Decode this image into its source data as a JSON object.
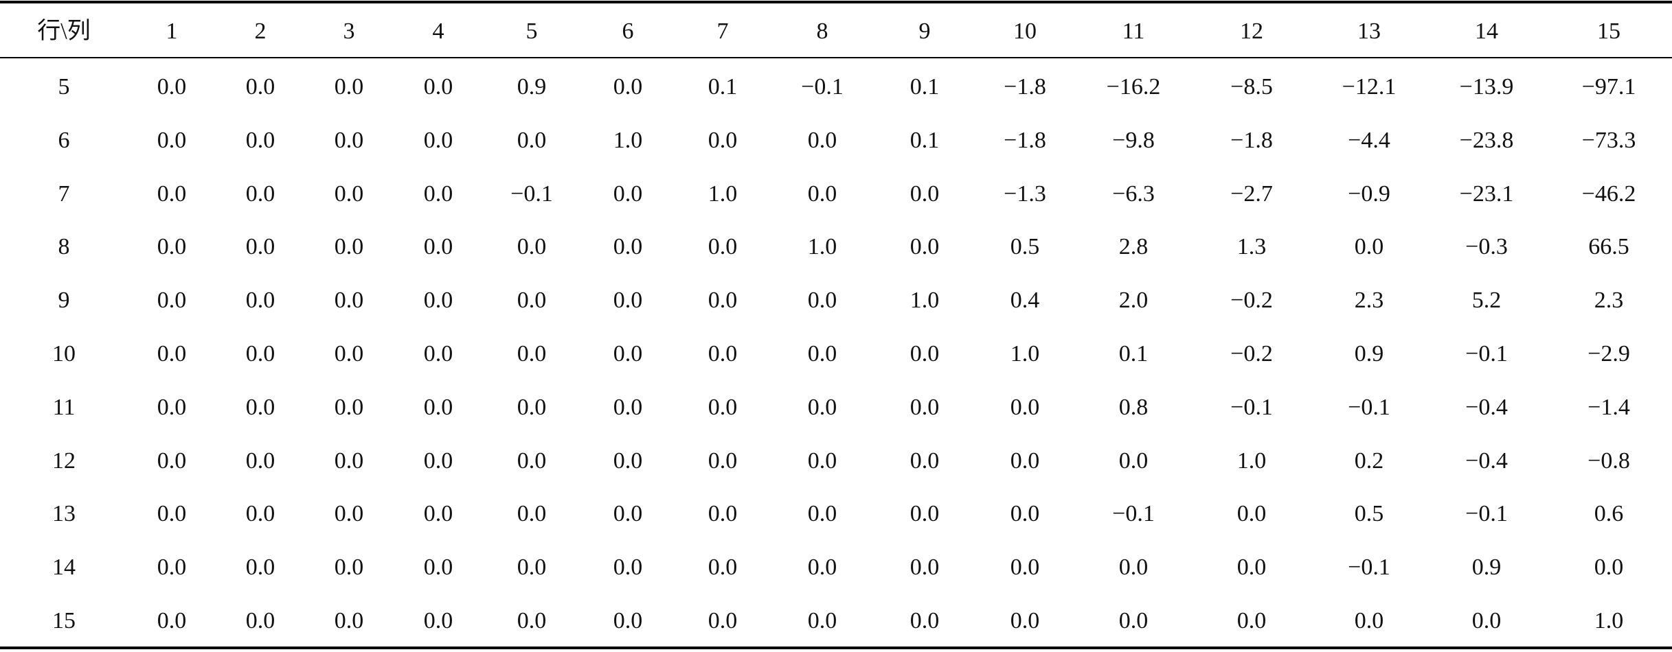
{
  "table": {
    "header": [
      "行\\列",
      "1",
      "2",
      "3",
      "4",
      "5",
      "6",
      "7",
      "8",
      "9",
      "10",
      "11",
      "12",
      "13",
      "14",
      "15"
    ],
    "rows": [
      [
        "5",
        "0.0",
        "0.0",
        "0.0",
        "0.0",
        "0.9",
        "0.0",
        "0.1",
        "−0.1",
        "0.1",
        "−1.8",
        "−16.2",
        "−8.5",
        "−12.1",
        "−13.9",
        "−97.1"
      ],
      [
        "6",
        "0.0",
        "0.0",
        "0.0",
        "0.0",
        "0.0",
        "1.0",
        "0.0",
        "0.0",
        "0.1",
        "−1.8",
        "−9.8",
        "−1.8",
        "−4.4",
        "−23.8",
        "−73.3"
      ],
      [
        "7",
        "0.0",
        "0.0",
        "0.0",
        "0.0",
        "−0.1",
        "0.0",
        "1.0",
        "0.0",
        "0.0",
        "−1.3",
        "−6.3",
        "−2.7",
        "−0.9",
        "−23.1",
        "−46.2"
      ],
      [
        "8",
        "0.0",
        "0.0",
        "0.0",
        "0.0",
        "0.0",
        "0.0",
        "0.0",
        "1.0",
        "0.0",
        "0.5",
        "2.8",
        "1.3",
        "0.0",
        "−0.3",
        "66.5"
      ],
      [
        "9",
        "0.0",
        "0.0",
        "0.0",
        "0.0",
        "0.0",
        "0.0",
        "0.0",
        "0.0",
        "1.0",
        "0.4",
        "2.0",
        "−0.2",
        "2.3",
        "5.2",
        "2.3"
      ],
      [
        "10",
        "0.0",
        "0.0",
        "0.0",
        "0.0",
        "0.0",
        "0.0",
        "0.0",
        "0.0",
        "0.0",
        "1.0",
        "0.1",
        "−0.2",
        "0.9",
        "−0.1",
        "−2.9"
      ],
      [
        "11",
        "0.0",
        "0.0",
        "0.0",
        "0.0",
        "0.0",
        "0.0",
        "0.0",
        "0.0",
        "0.0",
        "0.0",
        "0.8",
        "−0.1",
        "−0.1",
        "−0.4",
        "−1.4"
      ],
      [
        "12",
        "0.0",
        "0.0",
        "0.0",
        "0.0",
        "0.0",
        "0.0",
        "0.0",
        "0.0",
        "0.0",
        "0.0",
        "0.0",
        "1.0",
        "0.2",
        "−0.4",
        "−0.8"
      ],
      [
        "13",
        "0.0",
        "0.0",
        "0.0",
        "0.0",
        "0.0",
        "0.0",
        "0.0",
        "0.0",
        "0.0",
        "0.0",
        "−0.1",
        "0.0",
        "0.5",
        "−0.1",
        "0.6"
      ],
      [
        "14",
        "0.0",
        "0.0",
        "0.0",
        "0.0",
        "0.0",
        "0.0",
        "0.0",
        "0.0",
        "0.0",
        "0.0",
        "0.0",
        "0.0",
        "−0.1",
        "0.9",
        "0.0"
      ],
      [
        "15",
        "0.0",
        "0.0",
        "0.0",
        "0.0",
        "0.0",
        "0.0",
        "0.0",
        "0.0",
        "0.0",
        "0.0",
        "0.0",
        "0.0",
        "0.0",
        "0.0",
        "1.0"
      ]
    ]
  }
}
